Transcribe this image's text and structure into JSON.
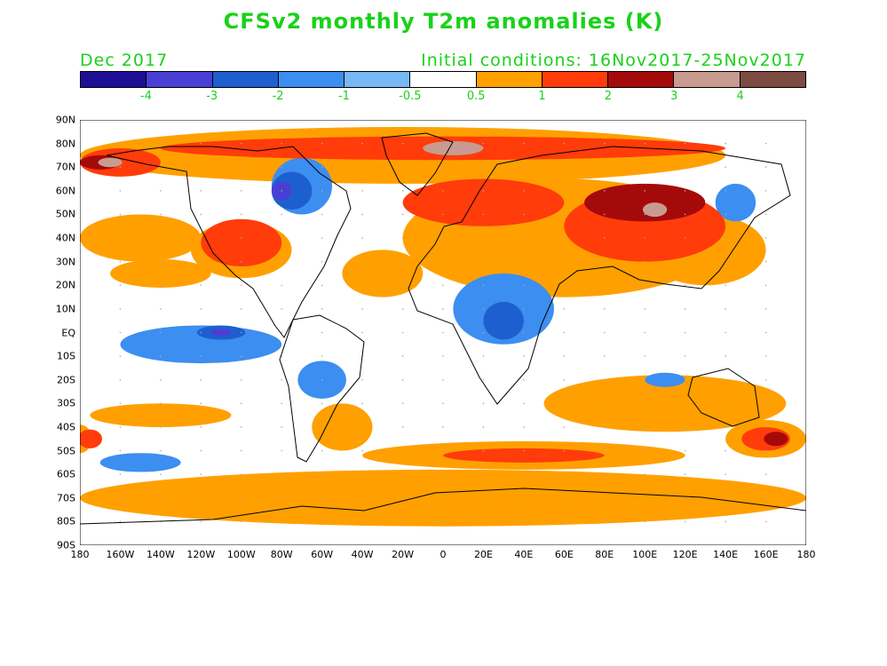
{
  "title": "CFSv2 monthly T2m anomalies (K)",
  "period": "Dec 2017",
  "initial_conditions": "Initial conditions: 16Nov2017-25Nov2017",
  "colorbar": {
    "colors": [
      "#1f0f96",
      "#4a3fd4",
      "#1e5fcf",
      "#3c8ef0",
      "#78b8f5",
      "#ffffff",
      "#ffa000",
      "#ff3c0a",
      "#a50a0a",
      "#c89b91",
      "#7d4b41"
    ],
    "labels": [
      "-4",
      "-3",
      "-2",
      "-1",
      "-0.5",
      "0.5",
      "1",
      "2",
      "3",
      "4"
    ]
  },
  "lat_labels": [
    "90N",
    "80N",
    "70N",
    "60N",
    "50N",
    "40N",
    "30N",
    "20N",
    "10N",
    "EQ",
    "10S",
    "20S",
    "30S",
    "40S",
    "50S",
    "60S",
    "70S",
    "80S",
    "90S"
  ],
  "lon_labels": [
    "180",
    "160W",
    "140W",
    "120W",
    "100W",
    "80W",
    "60W",
    "40W",
    "20W",
    "0",
    "20E",
    "40E",
    "60E",
    "80E",
    "100E",
    "120E",
    "140E",
    "160E",
    "180"
  ],
  "anomaly_regions": [
    {
      "level": "1",
      "cx": -20,
      "cy": 75,
      "rx": 160,
      "ry": 12
    },
    {
      "level": "1",
      "cx": 60,
      "cy": 40,
      "rx": 80,
      "ry": 25
    },
    {
      "level": "1",
      "cx": -150,
      "cy": 40,
      "rx": 30,
      "ry": 10
    },
    {
      "level": "1",
      "cx": -100,
      "cy": 35,
      "rx": 25,
      "ry": 12
    },
    {
      "level": "1",
      "cx": -140,
      "cy": 25,
      "rx": 25,
      "ry": 6
    },
    {
      "level": "1",
      "cx": -30,
      "cy": 25,
      "rx": 20,
      "ry": 10
    },
    {
      "level": "1",
      "cx": 130,
      "cy": 35,
      "rx": 30,
      "ry": 15
    },
    {
      "level": "1",
      "cx": 110,
      "cy": -30,
      "rx": 60,
      "ry": 12
    },
    {
      "level": "1",
      "cx": 0,
      "cy": -70,
      "rx": 180,
      "ry": 12
    },
    {
      "level": "1",
      "cx": 40,
      "cy": -52,
      "rx": 80,
      "ry": 6
    },
    {
      "level": "1",
      "cx": -140,
      "cy": -35,
      "rx": 35,
      "ry": 5
    },
    {
      "level": "1",
      "cx": 160,
      "cy": -45,
      "rx": 20,
      "ry": 8
    },
    {
      "level": "1",
      "cx": -180,
      "cy": -45,
      "rx": 6,
      "ry": 6
    },
    {
      "level": "1",
      "cx": -50,
      "cy": -40,
      "rx": 15,
      "ry": 10
    },
    {
      "level": "2",
      "cx": 0,
      "cy": 78,
      "rx": 140,
      "ry": 5
    },
    {
      "level": "2",
      "cx": -100,
      "cy": 38,
      "rx": 20,
      "ry": 10
    },
    {
      "level": "2",
      "cx": 20,
      "cy": 55,
      "rx": 40,
      "ry": 10
    },
    {
      "level": "2",
      "cx": 100,
      "cy": 45,
      "rx": 40,
      "ry": 15
    },
    {
      "level": "2",
      "cx": 160,
      "cy": -45,
      "rx": 12,
      "ry": 5
    },
    {
      "level": "2",
      "cx": -175,
      "cy": -45,
      "rx": 6,
      "ry": 4
    },
    {
      "level": "2",
      "cx": -160,
      "cy": 72,
      "rx": 20,
      "ry": 6
    },
    {
      "level": "2",
      "cx": 40,
      "cy": -52,
      "rx": 40,
      "ry": 3
    },
    {
      "level": "3",
      "cx": 100,
      "cy": 55,
      "rx": 30,
      "ry": 8
    },
    {
      "level": "3",
      "cx": -170,
      "cy": 72,
      "rx": 10,
      "ry": 3
    },
    {
      "level": "3",
      "cx": 165,
      "cy": -45,
      "rx": 6,
      "ry": 3
    },
    {
      "level": "4",
      "cx": 5,
      "cy": 78,
      "rx": 15,
      "ry": 3
    },
    {
      "level": "4",
      "cx": 105,
      "cy": 52,
      "rx": 6,
      "ry": 3
    },
    {
      "level": "4",
      "cx": -165,
      "cy": 72,
      "rx": 6,
      "ry": 2
    },
    {
      "level": "-1",
      "cx": 30,
      "cy": 10,
      "rx": 25,
      "ry": 15
    },
    {
      "level": "-1",
      "cx": -120,
      "cy": -5,
      "rx": 40,
      "ry": 8
    },
    {
      "level": "-1",
      "cx": -70,
      "cy": 62,
      "rx": 15,
      "ry": 12
    },
    {
      "level": "-1",
      "cx": -60,
      "cy": -20,
      "rx": 12,
      "ry": 8
    },
    {
      "level": "-1",
      "cx": 145,
      "cy": 55,
      "rx": 10,
      "ry": 8
    },
    {
      "level": "-1",
      "cx": -150,
      "cy": -55,
      "rx": 20,
      "ry": 4
    },
    {
      "level": "-1",
      "cx": 110,
      "cy": -20,
      "rx": 10,
      "ry": 3
    },
    {
      "level": "-2",
      "cx": -75,
      "cy": 60,
      "rx": 10,
      "ry": 8
    },
    {
      "level": "-2",
      "cx": -110,
      "cy": 0,
      "rx": 12,
      "ry": 3
    },
    {
      "level": "-2",
      "cx": 30,
      "cy": 5,
      "rx": 10,
      "ry": 8
    },
    {
      "level": "-3",
      "cx": -80,
      "cy": 60,
      "rx": 5,
      "ry": 4
    },
    {
      "level": "-3",
      "cx": -110,
      "cy": 0,
      "rx": 5,
      "ry": 1.5
    }
  ]
}
